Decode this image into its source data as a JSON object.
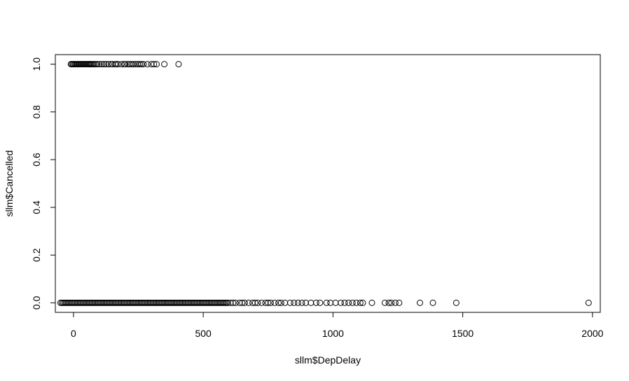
{
  "chart_data": {
    "type": "scatter",
    "title": "",
    "xlabel": "sllm$DepDelay",
    "ylabel": "sllm$Cancelled",
    "xlim": [
      -70,
      2030
    ],
    "ylim": [
      -0.04,
      1.04
    ],
    "x_ticks": [
      0,
      500,
      1000,
      1500,
      2000
    ],
    "x_tick_labels": [
      "0",
      "500",
      "1000",
      "1500",
      "2000"
    ],
    "y_ticks": [
      0.0,
      0.2,
      0.4,
      0.6,
      0.8,
      1.0
    ],
    "y_tick_labels": [
      "0.0",
      "0.2",
      "0.4",
      "0.6",
      "0.8",
      "1.0"
    ],
    "grid": false,
    "marker": "open-circle",
    "marker_color": "#000000",
    "series": [
      {
        "points": [
          [
            -10,
            1
          ],
          [
            -6,
            1
          ],
          [
            -2,
            1
          ],
          [
            2,
            1
          ],
          [
            6,
            1
          ],
          [
            10,
            1
          ],
          [
            14,
            1
          ],
          [
            18,
            1
          ],
          [
            22,
            1
          ],
          [
            26,
            1
          ],
          [
            30,
            1
          ],
          [
            34,
            1
          ],
          [
            38,
            1
          ],
          [
            42,
            1
          ],
          [
            46,
            1
          ],
          [
            50,
            1
          ],
          [
            54,
            1
          ],
          [
            58,
            1
          ],
          [
            62,
            1
          ],
          [
            66,
            1
          ],
          [
            70,
            1
          ],
          [
            75,
            1
          ],
          [
            80,
            1
          ],
          [
            86,
            1
          ],
          [
            92,
            1
          ],
          [
            100,
            1
          ],
          [
            110,
            1
          ],
          [
            118,
            1
          ],
          [
            125,
            1
          ],
          [
            135,
            1
          ],
          [
            145,
            1
          ],
          [
            150,
            1
          ],
          [
            160,
            1
          ],
          [
            165,
            1
          ],
          [
            172,
            1
          ],
          [
            185,
            1
          ],
          [
            195,
            1
          ],
          [
            200,
            1
          ],
          [
            210,
            1
          ],
          [
            218,
            1
          ],
          [
            225,
            1
          ],
          [
            232,
            1
          ],
          [
            240,
            1
          ],
          [
            248,
            1
          ],
          [
            256,
            1
          ],
          [
            262,
            1
          ],
          [
            270,
            1
          ],
          [
            285,
            1
          ],
          [
            300,
            1
          ],
          [
            310,
            1
          ],
          [
            320,
            1
          ],
          [
            350,
            1
          ],
          [
            405,
            1
          ],
          [
            -50,
            0
          ],
          [
            -45,
            0
          ],
          [
            -40,
            0
          ],
          [
            -35,
            0
          ],
          [
            -30,
            0
          ],
          [
            -25,
            0
          ],
          [
            -20,
            0
          ],
          [
            -15,
            0
          ],
          [
            -10,
            0
          ],
          [
            -5,
            0
          ],
          [
            0,
            0
          ],
          [
            5,
            0
          ],
          [
            10,
            0
          ],
          [
            15,
            0
          ],
          [
            20,
            0
          ],
          [
            25,
            0
          ],
          [
            30,
            0
          ],
          [
            35,
            0
          ],
          [
            40,
            0
          ],
          [
            45,
            0
          ],
          [
            50,
            0
          ],
          [
            55,
            0
          ],
          [
            60,
            0
          ],
          [
            65,
            0
          ],
          [
            70,
            0
          ],
          [
            75,
            0
          ],
          [
            80,
            0
          ],
          [
            85,
            0
          ],
          [
            90,
            0
          ],
          [
            95,
            0
          ],
          [
            100,
            0
          ],
          [
            105,
            0
          ],
          [
            110,
            0
          ],
          [
            115,
            0
          ],
          [
            120,
            0
          ],
          [
            125,
            0
          ],
          [
            130,
            0
          ],
          [
            135,
            0
          ],
          [
            140,
            0
          ],
          [
            145,
            0
          ],
          [
            150,
            0
          ],
          [
            155,
            0
          ],
          [
            160,
            0
          ],
          [
            165,
            0
          ],
          [
            170,
            0
          ],
          [
            175,
            0
          ],
          [
            180,
            0
          ],
          [
            185,
            0
          ],
          [
            190,
            0
          ],
          [
            195,
            0
          ],
          [
            200,
            0
          ],
          [
            205,
            0
          ],
          [
            210,
            0
          ],
          [
            215,
            0
          ],
          [
            220,
            0
          ],
          [
            225,
            0
          ],
          [
            230,
            0
          ],
          [
            235,
            0
          ],
          [
            240,
            0
          ],
          [
            245,
            0
          ],
          [
            250,
            0
          ],
          [
            255,
            0
          ],
          [
            260,
            0
          ],
          [
            265,
            0
          ],
          [
            270,
            0
          ],
          [
            275,
            0
          ],
          [
            280,
            0
          ],
          [
            285,
            0
          ],
          [
            290,
            0
          ],
          [
            295,
            0
          ],
          [
            300,
            0
          ],
          [
            305,
            0
          ],
          [
            310,
            0
          ],
          [
            315,
            0
          ],
          [
            320,
            0
          ],
          [
            325,
            0
          ],
          [
            330,
            0
          ],
          [
            335,
            0
          ],
          [
            340,
            0
          ],
          [
            345,
            0
          ],
          [
            350,
            0
          ],
          [
            355,
            0
          ],
          [
            360,
            0
          ],
          [
            365,
            0
          ],
          [
            370,
            0
          ],
          [
            375,
            0
          ],
          [
            380,
            0
          ],
          [
            385,
            0
          ],
          [
            390,
            0
          ],
          [
            395,
            0
          ],
          [
            400,
            0
          ],
          [
            405,
            0
          ],
          [
            410,
            0
          ],
          [
            415,
            0
          ],
          [
            420,
            0
          ],
          [
            425,
            0
          ],
          [
            430,
            0
          ],
          [
            435,
            0
          ],
          [
            440,
            0
          ],
          [
            445,
            0
          ],
          [
            450,
            0
          ],
          [
            455,
            0
          ],
          [
            460,
            0
          ],
          [
            465,
            0
          ],
          [
            470,
            0
          ],
          [
            475,
            0
          ],
          [
            480,
            0
          ],
          [
            485,
            0
          ],
          [
            490,
            0
          ],
          [
            495,
            0
          ],
          [
            500,
            0
          ],
          [
            505,
            0
          ],
          [
            510,
            0
          ],
          [
            515,
            0
          ],
          [
            520,
            0
          ],
          [
            525,
            0
          ],
          [
            530,
            0
          ],
          [
            535,
            0
          ],
          [
            540,
            0
          ],
          [
            545,
            0
          ],
          [
            550,
            0
          ],
          [
            555,
            0
          ],
          [
            560,
            0
          ],
          [
            565,
            0
          ],
          [
            570,
            0
          ],
          [
            575,
            0
          ],
          [
            580,
            0
          ],
          [
            585,
            0
          ],
          [
            590,
            0
          ],
          [
            595,
            0
          ],
          [
            605,
            0
          ],
          [
            615,
            0
          ],
          [
            625,
            0
          ],
          [
            640,
            0
          ],
          [
            650,
            0
          ],
          [
            660,
            0
          ],
          [
            675,
            0
          ],
          [
            690,
            0
          ],
          [
            700,
            0
          ],
          [
            710,
            0
          ],
          [
            725,
            0
          ],
          [
            740,
            0
          ],
          [
            750,
            0
          ],
          [
            760,
            0
          ],
          [
            775,
            0
          ],
          [
            790,
            0
          ],
          [
            800,
            0
          ],
          [
            815,
            0
          ],
          [
            835,
            0
          ],
          [
            850,
            0
          ],
          [
            865,
            0
          ],
          [
            880,
            0
          ],
          [
            895,
            0
          ],
          [
            915,
            0
          ],
          [
            935,
            0
          ],
          [
            950,
            0
          ],
          [
            975,
            0
          ],
          [
            990,
            0
          ],
          [
            1010,
            0
          ],
          [
            1030,
            0
          ],
          [
            1045,
            0
          ],
          [
            1060,
            0
          ],
          [
            1075,
            0
          ],
          [
            1090,
            0
          ],
          [
            1105,
            0
          ],
          [
            1115,
            0
          ],
          [
            1150,
            0
          ],
          [
            1200,
            0
          ],
          [
            1215,
            0
          ],
          [
            1225,
            0
          ],
          [
            1240,
            0
          ],
          [
            1255,
            0
          ],
          [
            1335,
            0
          ],
          [
            1385,
            0
          ],
          [
            1475,
            0
          ],
          [
            1985,
            0
          ]
        ]
      }
    ]
  }
}
